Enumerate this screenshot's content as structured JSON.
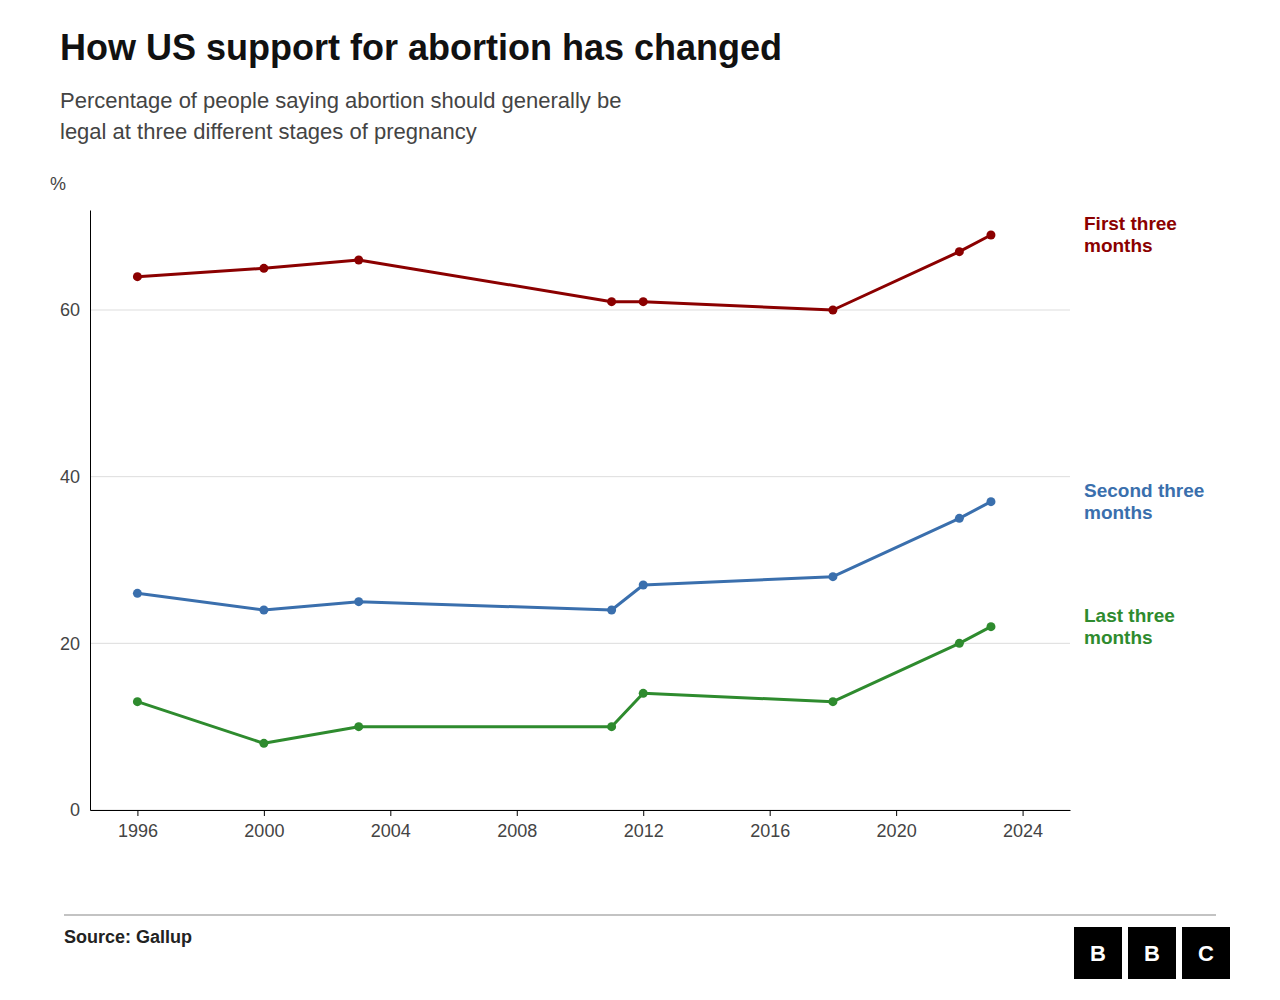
{
  "chart_data": {
    "type": "line",
    "title": "How US support for abortion has changed",
    "subtitle": "Percentage of people saying abortion should generally be\nlegal at three different stages of pregnancy",
    "ylabel": "%",
    "source": "Source: Gallup",
    "annotations": [
      "BBC"
    ],
    "x": [
      1996,
      2000,
      2003,
      2011,
      2012,
      2018,
      2022,
      2023
    ],
    "series": [
      {
        "name": "First three\nmonths",
        "color": "#8b0000",
        "values": [
          64,
          65,
          66,
          61,
          61,
          60,
          67,
          69
        ]
      },
      {
        "name": "Second three\nmonths",
        "color": "#3a6fad",
        "values": [
          26,
          24,
          25,
          24,
          27,
          28,
          35,
          37
        ]
      },
      {
        "name": "Last three\nmonths",
        "color": "#2e8b2e",
        "values": [
          13,
          8,
          10,
          10,
          14,
          13,
          20,
          22
        ]
      }
    ],
    "xlim": [
      1994.5,
      2025.5
    ],
    "ylim": [
      0,
      72
    ],
    "xticks": [
      1996,
      2000,
      2004,
      2008,
      2012,
      2016,
      2020,
      2024
    ],
    "yticks": [
      0,
      20,
      40,
      60
    ],
    "grid": true,
    "marker": "circle"
  }
}
